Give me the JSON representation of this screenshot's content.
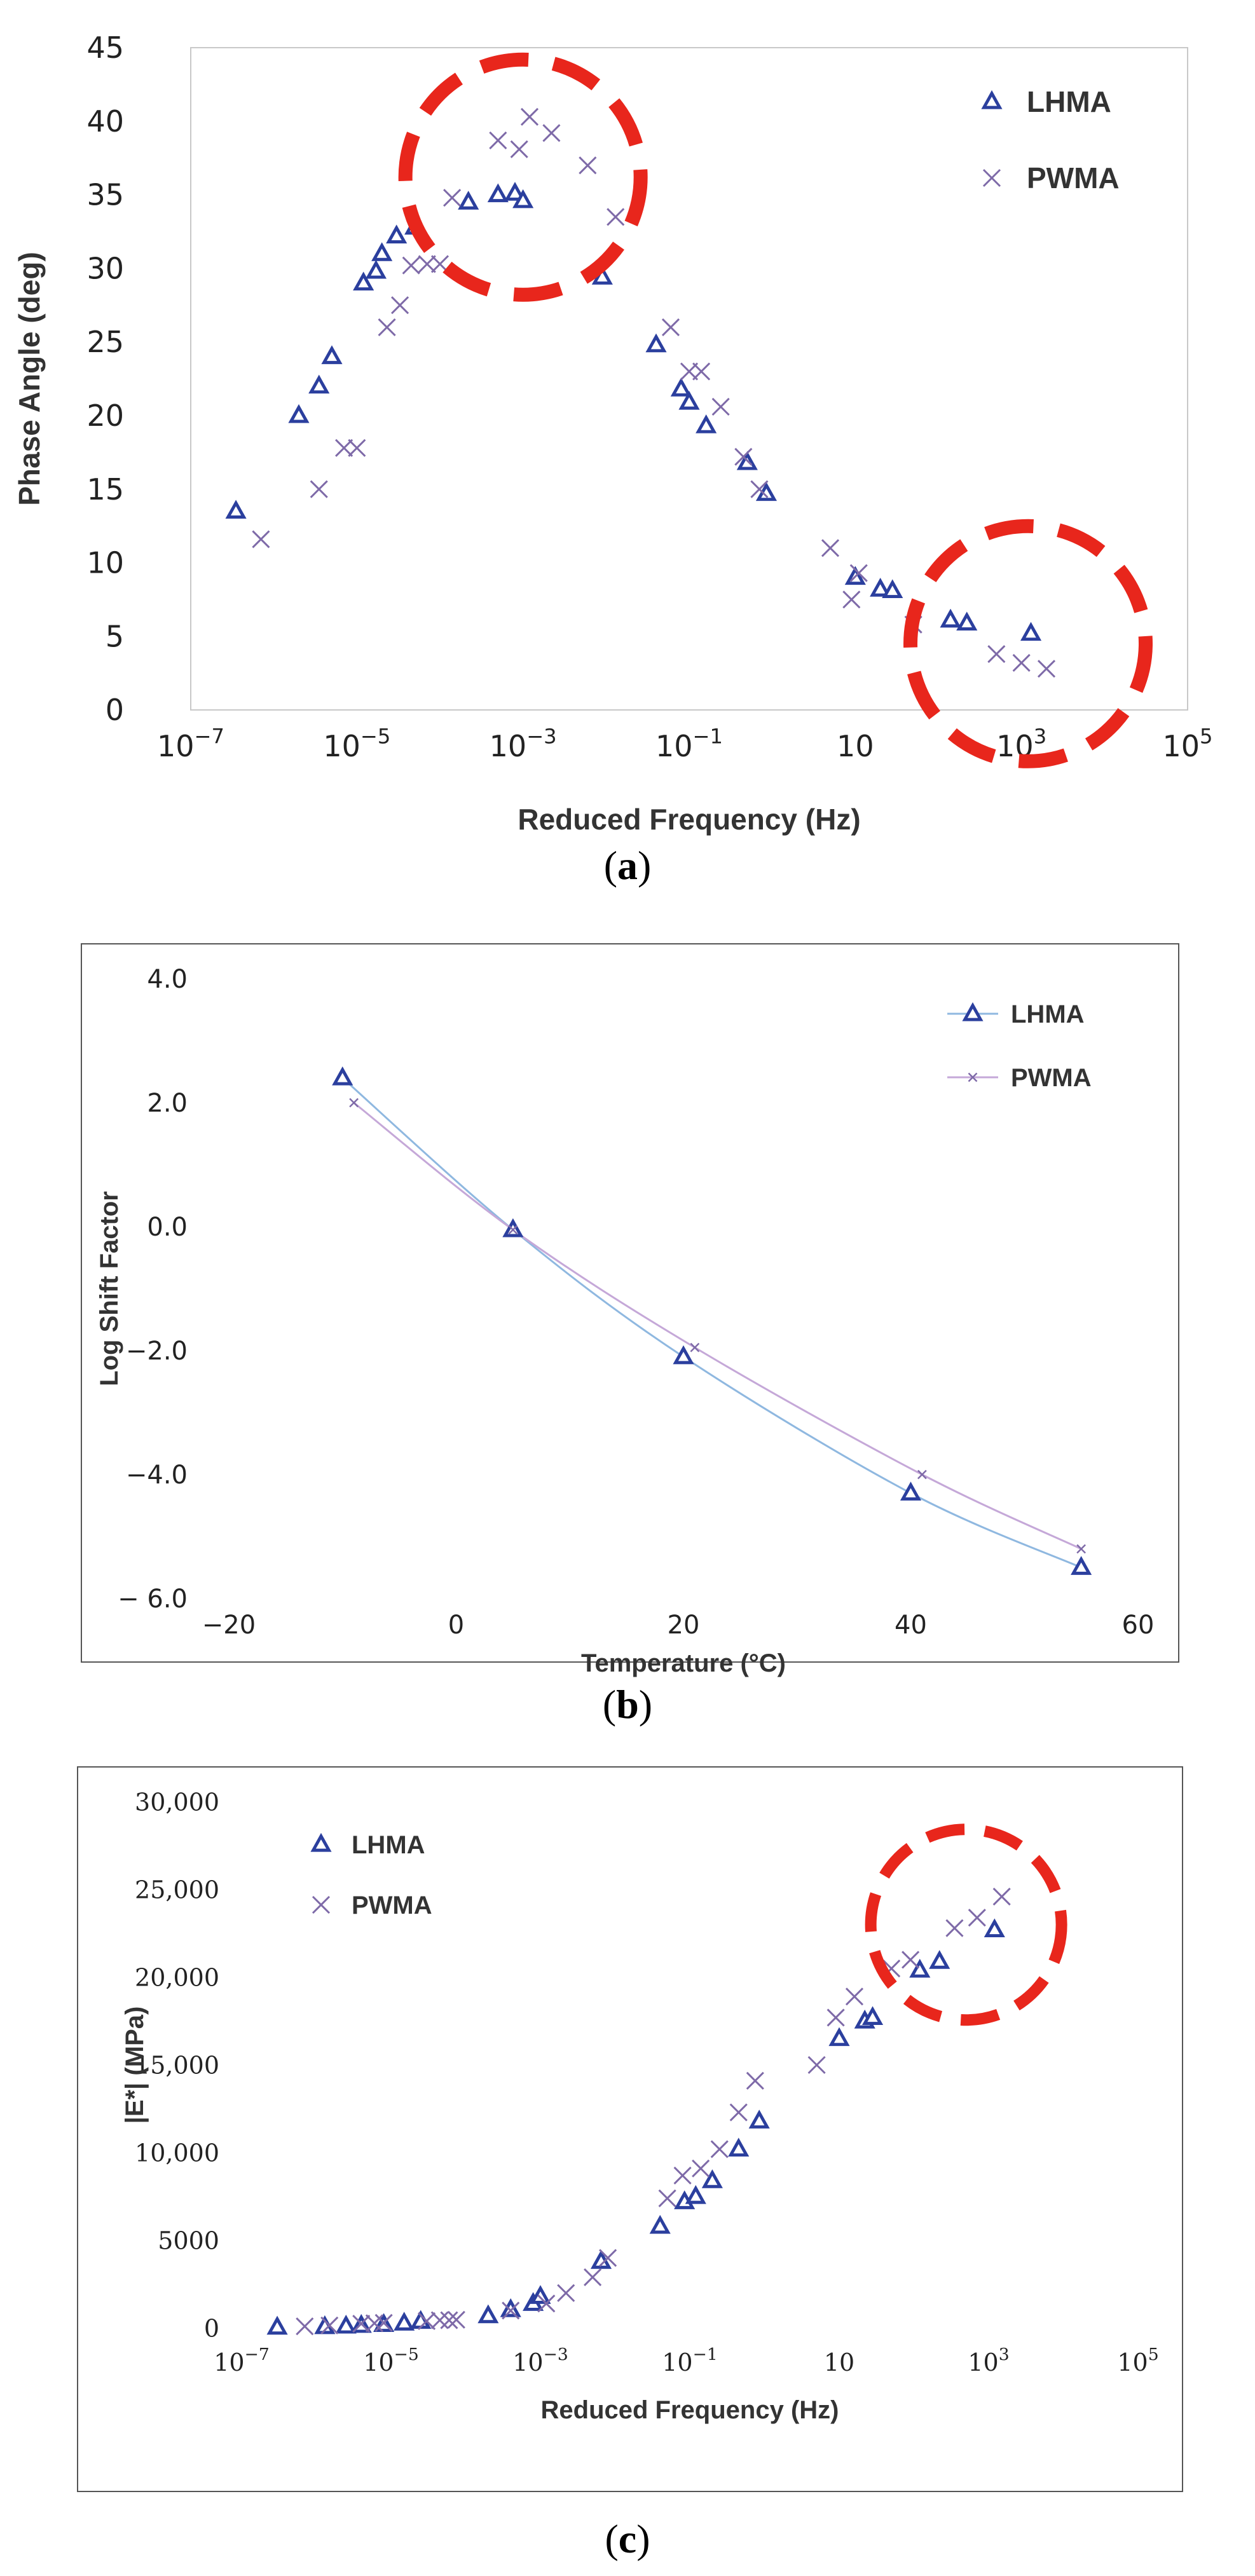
{
  "chart_data": [
    {
      "panel": "a",
      "type": "scatter",
      "ylabel": "Phase Angle (deg)",
      "xlabel": "Reduced Frequency (Hz)",
      "x_scale": "log",
      "xlim": [
        1e-07,
        100000
      ],
      "ylim": [
        0,
        45
      ],
      "x_ticks": [
        {
          "value": 1e-07,
          "base": "10",
          "exp": "−7"
        },
        {
          "value": 1e-05,
          "base": "10",
          "exp": "−5"
        },
        {
          "value": 0.001,
          "base": "10",
          "exp": "−3"
        },
        {
          "value": 0.1,
          "base": "10",
          "exp": "−1"
        },
        {
          "value": 10,
          "base": "10",
          "exp": ""
        },
        {
          "value": 1000,
          "base": "10",
          "exp": "3"
        },
        {
          "value": 100000,
          "base": "10",
          "exp": "5"
        }
      ],
      "y_ticks": [
        {
          "value": 0,
          "label": "0"
        },
        {
          "value": 5,
          "label": "5"
        },
        {
          "value": 10,
          "label": "10"
        },
        {
          "value": 15,
          "label": "15"
        },
        {
          "value": 20,
          "label": "20"
        },
        {
          "value": 25,
          "label": "25"
        },
        {
          "value": 30,
          "label": "30"
        },
        {
          "value": 35,
          "label": "35"
        },
        {
          "value": 40,
          "label": "40"
        },
        {
          "value": 45,
          "label": "45"
        }
      ],
      "legend_placement": "top-right",
      "grid": false,
      "series": [
        {
          "name": "LHMA",
          "marker": "triangle",
          "color": "#2b3f9e",
          "points": [
            [
              3.5e-07,
              13.5
            ],
            [
              2e-06,
              20
            ],
            [
              3.5e-06,
              22
            ],
            [
              5e-06,
              24
            ],
            [
              1.2e-05,
              29
            ],
            [
              1.7e-05,
              29.8
            ],
            [
              2e-05,
              31
            ],
            [
              3e-05,
              32.2
            ],
            [
              5e-05,
              32.8
            ],
            [
              0.00022,
              34.5
            ],
            [
              0.0005,
              35
            ],
            [
              0.0008,
              35.1
            ],
            [
              0.001,
              34.6
            ],
            [
              0.009,
              29.4
            ],
            [
              0.04,
              24.8
            ],
            [
              0.08,
              21.8
            ],
            [
              0.1,
              20.9
            ],
            [
              0.16,
              19.3
            ],
            [
              0.5,
              16.8
            ],
            [
              0.85,
              14.7
            ],
            [
              10,
              9
            ],
            [
              20,
              8.2
            ],
            [
              28,
              8.1
            ],
            [
              140,
              6.1
            ],
            [
              220,
              5.9
            ],
            [
              1300,
              5.2
            ]
          ]
        },
        {
          "name": "PWMA",
          "marker": "x",
          "color": "#7e6aa8",
          "points": [
            [
              7e-07,
              11.6
            ],
            [
              3.5e-06,
              15
            ],
            [
              7e-06,
              17.8
            ],
            [
              1e-05,
              17.8
            ],
            [
              2.3e-05,
              26
            ],
            [
              3.3e-05,
              27.5
            ],
            [
              4.5e-05,
              30.2
            ],
            [
              7e-05,
              30.3
            ],
            [
              0.0001,
              30.3
            ],
            [
              0.00014,
              34.8
            ],
            [
              0.0005,
              38.7
            ],
            [
              0.0009,
              38.1
            ],
            [
              0.0012,
              40.3
            ],
            [
              0.0022,
              39.2
            ],
            [
              0.006,
              37
            ],
            [
              0.013,
              33.5
            ],
            [
              0.06,
              26
            ],
            [
              0.1,
              23
            ],
            [
              0.14,
              23
            ],
            [
              0.24,
              20.6
            ],
            [
              0.45,
              17.2
            ],
            [
              0.7,
              15
            ],
            [
              5,
              11
            ],
            [
              9,
              7.5
            ],
            [
              11,
              9.3
            ],
            [
              50,
              5.8
            ],
            [
              500,
              3.8
            ],
            [
              1000,
              3.2
            ],
            [
              2000,
              2.8
            ]
          ]
        }
      ],
      "highlight_circles": [
        {
          "x": 0.001,
          "y": 36.2,
          "color": "#e8261c"
        },
        {
          "x": 1200,
          "y": 4.5,
          "color": "#e8261c"
        }
      ]
    },
    {
      "panel": "b",
      "type": "line",
      "ylabel": "Log Shift Factor",
      "xlabel": "Temperature (°C)",
      "xlim": [
        -20,
        60
      ],
      "ylim": [
        -6,
        4
      ],
      "x_ticks": [
        {
          "value": -20,
          "label": "−20"
        },
        {
          "value": 0,
          "label": "0"
        },
        {
          "value": 20,
          "label": "20"
        },
        {
          "value": 40,
          "label": "40"
        },
        {
          "value": 60,
          "label": "60"
        }
      ],
      "y_ticks": [
        {
          "value": 4,
          "label": "4.0"
        },
        {
          "value": 2,
          "label": "2.0"
        },
        {
          "value": 0,
          "label": "0.0"
        },
        {
          "value": -2,
          "label": "−2.0"
        },
        {
          "value": -4,
          "label": "−4.0"
        },
        {
          "value": -6,
          "label": "− 6.0"
        }
      ],
      "legend_placement": "top-right",
      "grid": false,
      "series": [
        {
          "name": "LHMA",
          "marker": "triangle",
          "color": "#2b3f9e",
          "line_color": "#8fb8e0",
          "points": [
            [
              -10,
              2.4
            ],
            [
              5,
              -0.05
            ],
            [
              20,
              -2.1
            ],
            [
              40,
              -4.3
            ],
            [
              55,
              -5.5
            ]
          ]
        },
        {
          "name": "PWMA",
          "marker": "small-x",
          "color": "#7e6aa8",
          "line_color": "#c5a8d8",
          "points": [
            [
              -9,
              2
            ],
            [
              5,
              -0.05
            ],
            [
              21,
              -1.95
            ],
            [
              41,
              -4
            ],
            [
              55,
              -5.2
            ]
          ]
        }
      ]
    },
    {
      "panel": "c",
      "type": "scatter",
      "ylabel": "|E*| (MPa)",
      "xlabel": "Reduced Frequency (Hz)",
      "x_scale": "log",
      "xlim": [
        1e-07,
        100000
      ],
      "ylim": [
        0,
        30000
      ],
      "x_ticks": [
        {
          "value": 1e-07,
          "base": "10",
          "exp": "−7"
        },
        {
          "value": 1e-05,
          "base": "10",
          "exp": "−5"
        },
        {
          "value": 0.001,
          "base": "10",
          "exp": "−3"
        },
        {
          "value": 0.1,
          "base": "10",
          "exp": "−1"
        },
        {
          "value": 10,
          "base": "10",
          "exp": ""
        },
        {
          "value": 1000,
          "base": "10",
          "exp": "3"
        },
        {
          "value": 100000,
          "base": "10",
          "exp": "5"
        }
      ],
      "y_ticks": [
        {
          "value": 0,
          "label": "0"
        },
        {
          "value": 5000,
          "label": "5000"
        },
        {
          "value": 10000,
          "label": "10,000"
        },
        {
          "value": 15000,
          "label": "15,000"
        },
        {
          "value": 20000,
          "label": "20,000"
        },
        {
          "value": 25000,
          "label": "25,000"
        },
        {
          "value": 30000,
          "label": "30,000"
        }
      ],
      "legend_placement": "top-left",
      "grid": false,
      "series": [
        {
          "name": "LHMA",
          "marker": "triangle",
          "color": "#2b3f9e",
          "points": [
            [
              3e-07,
              50
            ],
            [
              1.3e-06,
              80
            ],
            [
              2.5e-06,
              110
            ],
            [
              4e-06,
              150
            ],
            [
              8e-06,
              200
            ],
            [
              1.5e-05,
              280
            ],
            [
              2.5e-05,
              380
            ],
            [
              0.0002,
              700
            ],
            [
              0.0004,
              1050
            ],
            [
              0.0008,
              1400
            ],
            [
              0.001,
              1800
            ],
            [
              0.0065,
              3800
            ],
            [
              0.04,
              5800
            ],
            [
              0.085,
              7200
            ],
            [
              0.12,
              7500
            ],
            [
              0.2,
              8400
            ],
            [
              0.45,
              10200
            ],
            [
              0.85,
              11800
            ],
            [
              10,
              16500
            ],
            [
              22,
              17500
            ],
            [
              28,
              17700
            ],
            [
              120,
              20400
            ],
            [
              220,
              20900
            ],
            [
              1200,
              22700
            ]
          ]
        },
        {
          "name": "PWMA",
          "marker": "x",
          "color": "#7e6aa8",
          "points": [
            [
              7e-07,
              100
            ],
            [
              1.5e-06,
              150
            ],
            [
              4e-06,
              250
            ],
            [
              6e-06,
              280
            ],
            [
              8e-06,
              300
            ],
            [
              3e-05,
              400
            ],
            [
              4.5e-05,
              450
            ],
            [
              6e-05,
              450
            ],
            [
              7.5e-05,
              480
            ],
            [
              0.0004,
              1000
            ],
            [
              0.0012,
              1400
            ],
            [
              0.0022,
              2000
            ],
            [
              0.005,
              2900
            ],
            [
              0.008,
              4000
            ],
            [
              0.05,
              7400
            ],
            [
              0.08,
              8700
            ],
            [
              0.14,
              9100
            ],
            [
              0.25,
              10200
            ],
            [
              0.45,
              12300
            ],
            [
              0.75,
              14100
            ],
            [
              5,
              15000
            ],
            [
              9,
              17700
            ],
            [
              16,
              18900
            ],
            [
              50,
              20500
            ],
            [
              90,
              21000
            ],
            [
              350,
              22800
            ],
            [
              700,
              23400
            ],
            [
              1500,
              24600
            ]
          ]
        }
      ],
      "highlight_circles": [
        {
          "x": 500,
          "y": 23000,
          "color": "#e8261c"
        }
      ]
    }
  ],
  "captions": {
    "a": {
      "open": "(",
      "letter": "a",
      "close": ")"
    },
    "b": {
      "open": "(",
      "letter": "b",
      "close": ")"
    },
    "c": {
      "open": "(",
      "letter": "c",
      "close": ")"
    }
  }
}
